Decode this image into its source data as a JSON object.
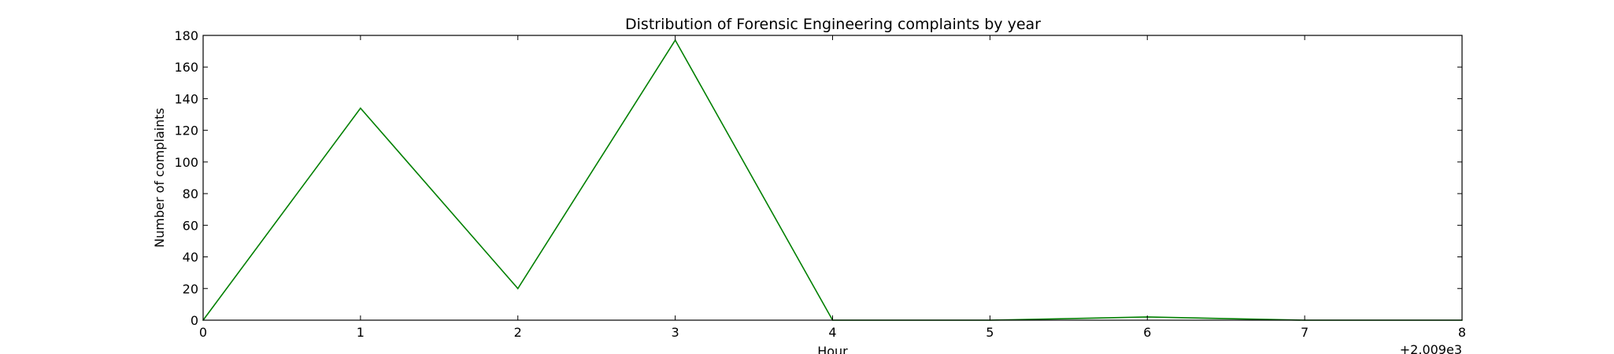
{
  "chart_data": {
    "type": "line",
    "title": "Distribution of  Forensic Engineering complaints by year",
    "xlabel": "Hour",
    "ylabel": "Number of complaints",
    "x_offset_label": "+2.009e3",
    "xlim": [
      0,
      8
    ],
    "ylim": [
      0,
      180
    ],
    "x_ticks": [
      "0",
      "1",
      "2",
      "3",
      "4",
      "5",
      "6",
      "7",
      "8"
    ],
    "y_ticks": [
      "0",
      "20",
      "40",
      "60",
      "80",
      "100",
      "120",
      "140",
      "160",
      "180"
    ],
    "grid": false,
    "series": [
      {
        "color": "#008000",
        "x": [
          0,
          1,
          2,
          3,
          4,
          5,
          6,
          7,
          8
        ],
        "y": [
          0,
          134,
          20,
          177,
          0,
          0,
          2,
          0,
          0
        ]
      }
    ]
  }
}
